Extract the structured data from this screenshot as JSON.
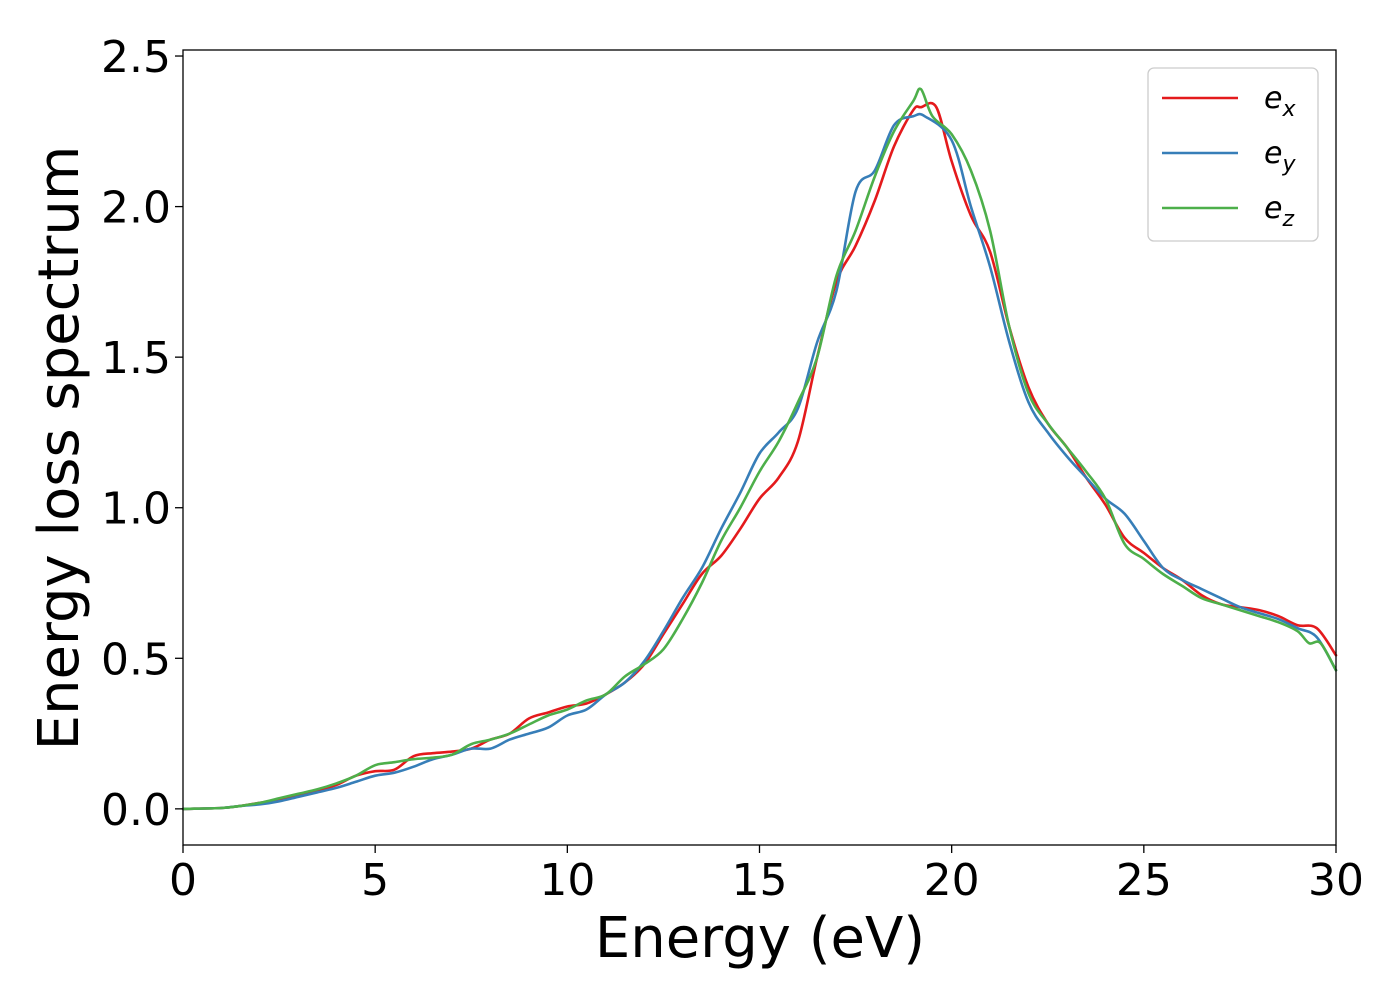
{
  "chart_data": {
    "type": "line",
    "xlabel": "Energy (eV)",
    "ylabel": "Energy loss spectrum",
    "xlim": [
      0,
      30
    ],
    "ylim": [
      -0.12,
      2.52
    ],
    "xticks": [
      0,
      5,
      10,
      15,
      20,
      25,
      30
    ],
    "yticks": [
      0.0,
      0.5,
      1.0,
      1.5,
      2.0,
      2.5
    ],
    "xtick_labels": [
      "0",
      "5",
      "10",
      "15",
      "20",
      "25",
      "30"
    ],
    "ytick_labels": [
      "0.0",
      "0.5",
      "1.0",
      "1.5",
      "2.0",
      "2.5"
    ],
    "grid": false,
    "legend_position": "top-right",
    "series": [
      {
        "name": "e",
        "subscript": "x",
        "color": "#e41a1c",
        "x": [
          0,
          1,
          1.5,
          2,
          2.5,
          3,
          3.5,
          4,
          4.5,
          5,
          5.5,
          6,
          6.5,
          7,
          7.5,
          8,
          8.5,
          9,
          9.5,
          10,
          10.5,
          11,
          11.5,
          12,
          12.5,
          13,
          13.5,
          14,
          14.5,
          15,
          15.5,
          16,
          16.5,
          17,
          17.5,
          18,
          18.5,
          19,
          19.2,
          19.6,
          20,
          20.5,
          21,
          21.5,
          22,
          22.5,
          23,
          23.5,
          24,
          24.5,
          25,
          25.5,
          26,
          26.5,
          27,
          27.5,
          28,
          28.5,
          29,
          29.5,
          30
        ],
        "y": [
          0.0,
          0.003,
          0.01,
          0.02,
          0.03,
          0.045,
          0.06,
          0.08,
          0.11,
          0.125,
          0.13,
          0.175,
          0.185,
          0.19,
          0.2,
          0.23,
          0.25,
          0.3,
          0.32,
          0.34,
          0.35,
          0.38,
          0.42,
          0.48,
          0.58,
          0.68,
          0.78,
          0.84,
          0.93,
          1.03,
          1.1,
          1.22,
          1.5,
          1.75,
          1.87,
          2.02,
          2.2,
          2.32,
          2.33,
          2.33,
          2.15,
          1.97,
          1.85,
          1.6,
          1.4,
          1.28,
          1.2,
          1.1,
          1.01,
          0.9,
          0.85,
          0.8,
          0.76,
          0.71,
          0.68,
          0.67,
          0.66,
          0.64,
          0.61,
          0.6,
          0.51
        ]
      },
      {
        "name": "e",
        "subscript": "y",
        "color": "#377eb8",
        "x": [
          0,
          1,
          1.5,
          2,
          2.5,
          3,
          3.5,
          4,
          4.5,
          5,
          5.5,
          6,
          6.5,
          7,
          7.5,
          8,
          8.5,
          9,
          9.5,
          10,
          10.5,
          11,
          11.5,
          12,
          12.5,
          13,
          13.5,
          14,
          14.5,
          15,
          15.5,
          16,
          16.5,
          17,
          17.5,
          18,
          18.5,
          19,
          19.3,
          20,
          20.5,
          21,
          21.5,
          22,
          22.5,
          23,
          23.5,
          24,
          24.5,
          25,
          25.5,
          26,
          26.5,
          27,
          27.5,
          28,
          28.5,
          29,
          29.5,
          30
        ],
        "y": [
          0.0,
          0.003,
          0.01,
          0.015,
          0.025,
          0.04,
          0.055,
          0.07,
          0.09,
          0.11,
          0.12,
          0.14,
          0.165,
          0.18,
          0.2,
          0.2,
          0.23,
          0.25,
          0.27,
          0.31,
          0.33,
          0.38,
          0.42,
          0.49,
          0.59,
          0.7,
          0.8,
          0.93,
          1.05,
          1.18,
          1.25,
          1.33,
          1.55,
          1.72,
          2.05,
          2.12,
          2.27,
          2.3,
          2.3,
          2.22,
          2.0,
          1.8,
          1.55,
          1.35,
          1.25,
          1.17,
          1.1,
          1.03,
          0.98,
          0.89,
          0.8,
          0.76,
          0.73,
          0.7,
          0.67,
          0.65,
          0.63,
          0.6,
          0.57,
          0.46
        ]
      },
      {
        "name": "e",
        "subscript": "z",
        "color": "#4daf4a",
        "x": [
          0,
          1,
          1.5,
          2,
          2.5,
          3,
          3.5,
          4,
          4.5,
          5,
          5.5,
          6,
          6.5,
          7,
          7.5,
          8,
          8.5,
          9,
          9.5,
          10,
          10.5,
          11,
          11.5,
          12,
          12.5,
          13,
          13.5,
          14,
          14.5,
          15,
          15.5,
          16,
          16.5,
          17,
          17.5,
          18,
          18.5,
          19,
          19.2,
          19.5,
          20,
          20.5,
          21,
          21.5,
          22,
          22.5,
          23,
          23.5,
          24,
          24.5,
          25,
          25.5,
          26,
          26.5,
          27,
          27.5,
          28,
          28.5,
          29,
          29.3,
          29.6,
          30
        ],
        "y": [
          0.0,
          0.003,
          0.01,
          0.02,
          0.035,
          0.05,
          0.065,
          0.085,
          0.11,
          0.145,
          0.155,
          0.165,
          0.17,
          0.18,
          0.215,
          0.23,
          0.25,
          0.28,
          0.31,
          0.33,
          0.36,
          0.38,
          0.44,
          0.48,
          0.53,
          0.63,
          0.75,
          0.89,
          1.0,
          1.12,
          1.22,
          1.35,
          1.5,
          1.77,
          1.92,
          2.1,
          2.25,
          2.35,
          2.39,
          2.3,
          2.24,
          2.12,
          1.92,
          1.6,
          1.38,
          1.28,
          1.2,
          1.12,
          1.03,
          0.88,
          0.83,
          0.78,
          0.74,
          0.7,
          0.68,
          0.66,
          0.64,
          0.62,
          0.59,
          0.55,
          0.55,
          0.46
        ]
      }
    ]
  }
}
